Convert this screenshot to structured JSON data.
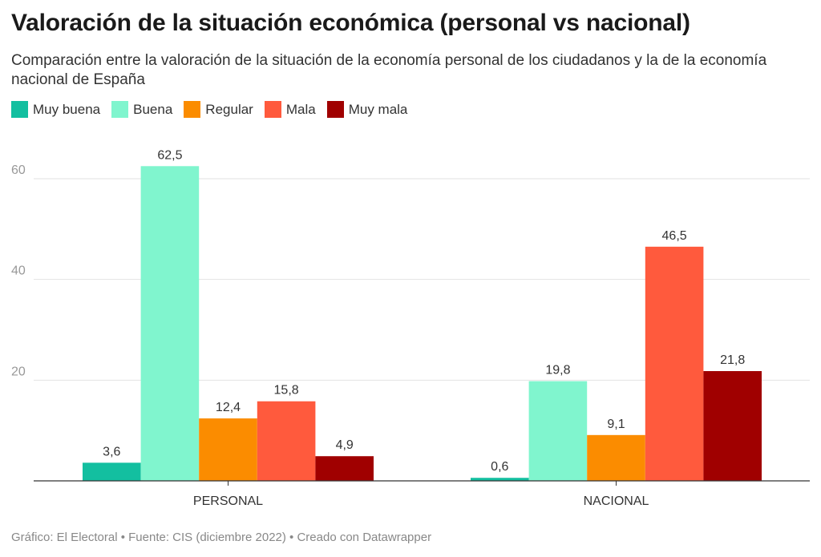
{
  "title": "Valoración de la situación económica (personal vs nacional)",
  "subtitle": "Comparación entre la valoración de la situación de la economía personal de los ciudadanos y la de la economía nacional de España",
  "footer": "Gráfico: El Electoral • Fuente: CIS (diciembre 2022) • Creado con Datawrapper",
  "chart_data": {
    "type": "bar",
    "categories": [
      "PERSONAL",
      "NACIONAL"
    ],
    "series": [
      {
        "name": "Muy buena",
        "color": "#13bfa0",
        "values": [
          3.6,
          0.6
        ],
        "labels": [
          "3,6",
          "0,6"
        ]
      },
      {
        "name": "Buena",
        "color": "#80f5ce",
        "values": [
          62.5,
          19.8
        ],
        "labels": [
          "62,5",
          "19,8"
        ]
      },
      {
        "name": "Regular",
        "color": "#fb8c00",
        "values": [
          12.4,
          9.1
        ],
        "labels": [
          "12,4",
          "9,1"
        ]
      },
      {
        "name": "Mala",
        "color": "#ff5a3d",
        "values": [
          15.8,
          46.5
        ],
        "labels": [
          "15,8",
          "46,5"
        ]
      },
      {
        "name": "Muy mala",
        "color": "#a00000",
        "values": [
          4.9,
          21.8
        ],
        "labels": [
          "4,9",
          "21,8"
        ]
      }
    ],
    "yticks": [
      20,
      40,
      60
    ],
    "ylim": [
      0,
      66
    ],
    "grid": true,
    "legend": "top-left"
  }
}
